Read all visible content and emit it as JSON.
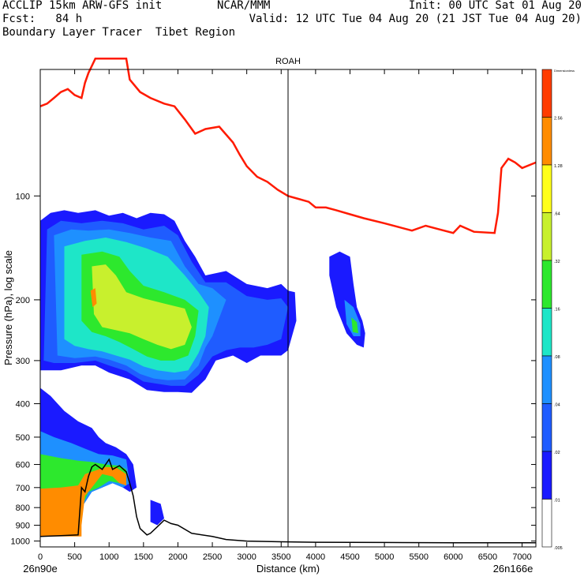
{
  "header": {
    "line1_left": "ACCLIP 15km ARW-GFS init",
    "line1_mid": "NCAR/MMM",
    "line1_right": "Init: 00 UTC Sat 01 Aug 20",
    "line2_left": "Fcst:   84 h",
    "line2_right": "Valid: 12 UTC Tue 04 Aug 20 (21 JST Tue 04 Aug 20)",
    "line3_left": "Boundary Layer Tracer  Tibet Region"
  },
  "colors": {
    "tropopause": "#ff1a00",
    "terrain": "#000000",
    "levels": [
      "#ffffff",
      "#1a1aff",
      "#1f5cff",
      "#1e90ff",
      "#1ee6c8",
      "#2de82d",
      "#c8f02d",
      "#ffff1a",
      "#ff8c00",
      "#ff3c00"
    ]
  },
  "chart_data": {
    "type": "contour-cross-section",
    "title": "ROAH",
    "xlabel": "Distance (km)",
    "ylabel": "Pressure (hPa), log scale",
    "x_ticks": [
      0,
      500,
      1000,
      1500,
      2000,
      2500,
      3000,
      3500,
      4000,
      4500,
      5000,
      5500,
      6000,
      6500,
      7000
    ],
    "xlim": [
      0,
      7200
    ],
    "y_ticks": [
      100,
      200,
      300,
      400,
      500,
      600,
      700,
      800,
      900,
      1000
    ],
    "ylog": true,
    "ylim": [
      1040,
      43
    ],
    "x_start_label": "26n90e",
    "x_end_label": "26n166e",
    "vertical_marker_x": 3600,
    "colorbar_labels": [
      "Dimensionless",
      "2.56",
      "1.28",
      ".64",
      ".32",
      ".16",
      ".08",
      ".04",
      ".02",
      ".01",
      ".005"
    ],
    "tropopause": {
      "x": [
        0,
        100,
        200,
        300,
        400,
        500,
        600,
        650,
        700,
        750,
        800,
        1250,
        1300,
        1450,
        1600,
        1800,
        1950,
        2100,
        2250,
        2400,
        2600,
        2800,
        2900,
        3000,
        3150,
        3300,
        3450,
        3600,
        3750,
        3900,
        4000,
        4150,
        4300,
        4500,
        4700,
        5000,
        5200,
        5400,
        5600,
        5800,
        6000,
        6100,
        6300,
        6600,
        6650,
        6700,
        6800,
        6900,
        7000,
        7200
      ],
      "p": [
        55,
        54,
        52,
        50,
        49,
        51,
        52,
        47,
        44,
        42,
        40,
        40,
        46,
        50,
        52,
        54,
        55,
        60,
        66,
        64,
        63,
        70,
        76,
        82,
        88,
        91,
        96,
        100,
        102,
        104,
        108,
        108,
        110,
        113,
        116,
        120,
        123,
        126,
        122,
        125,
        128,
        122,
        127,
        128,
        112,
        83,
        78,
        80,
        83,
        80
      ]
    },
    "terrain": {
      "x": [
        0,
        300,
        550,
        600,
        650,
        700,
        750,
        800,
        900,
        1000,
        1050,
        1150,
        1250,
        1300,
        1350,
        1400,
        1450,
        1550,
        1600,
        1700,
        1800,
        1900,
        2000,
        2200,
        2500,
        2700,
        3000,
        3500,
        4000,
        5000,
        6000,
        7200
      ],
      "p": [
        970,
        965,
        960,
        700,
        720,
        650,
        610,
        600,
        620,
        580,
        620,
        605,
        630,
        680,
        740,
        850,
        920,
        960,
        950,
        910,
        870,
        890,
        900,
        950,
        970,
        990,
        1000,
        1005,
        1008,
        1010,
        1012,
        1012
      ]
    },
    "plumes_description": "colored contour regions of tracer concentration",
    "plumes": [
      {
        "level": 1,
        "pts": [
          [
            0,
            118
          ],
          [
            150,
            112
          ],
          [
            350,
            110
          ],
          [
            550,
            112
          ],
          [
            800,
            110
          ],
          [
            1000,
            114
          ],
          [
            1200,
            112
          ],
          [
            1400,
            116
          ],
          [
            1600,
            112
          ],
          [
            1800,
            113
          ],
          [
            1950,
            118
          ],
          [
            2100,
            135
          ],
          [
            2250,
            150
          ],
          [
            2400,
            170
          ],
          [
            2700,
            165
          ],
          [
            3000,
            180
          ],
          [
            3300,
            185
          ],
          [
            3500,
            180
          ],
          [
            3600,
            188
          ],
          [
            3700,
            190
          ],
          [
            3720,
            230
          ],
          [
            3600,
            280
          ],
          [
            3500,
            290
          ],
          [
            3200,
            290
          ],
          [
            3000,
            305
          ],
          [
            2800,
            290
          ],
          [
            2550,
            300
          ],
          [
            2400,
            340
          ],
          [
            2200,
            372
          ],
          [
            2000,
            370
          ],
          [
            1800,
            370
          ],
          [
            1550,
            365
          ],
          [
            1300,
            340
          ],
          [
            1000,
            325
          ],
          [
            800,
            310
          ],
          [
            600,
            310
          ],
          [
            300,
            320
          ],
          [
            0,
            320
          ]
        ]
      },
      {
        "level": 2,
        "pts": [
          [
            100,
            125
          ],
          [
            300,
            118
          ],
          [
            600,
            120
          ],
          [
            900,
            118
          ],
          [
            1200,
            120
          ],
          [
            1500,
            125
          ],
          [
            1800,
            122
          ],
          [
            2000,
            130
          ],
          [
            2200,
            155
          ],
          [
            2400,
            178
          ],
          [
            2700,
            178
          ],
          [
            3000,
            195
          ],
          [
            3300,
            200
          ],
          [
            3500,
            198
          ],
          [
            3600,
            210
          ],
          [
            3500,
            260
          ],
          [
            3300,
            270
          ],
          [
            3100,
            275
          ],
          [
            2900,
            275
          ],
          [
            2700,
            280
          ],
          [
            2500,
            292
          ],
          [
            2300,
            330
          ],
          [
            2100,
            355
          ],
          [
            1900,
            355
          ],
          [
            1700,
            350
          ],
          [
            1500,
            345
          ],
          [
            1250,
            322
          ],
          [
            1000,
            310
          ],
          [
            800,
            300
          ],
          [
            500,
            305
          ],
          [
            200,
            305
          ],
          [
            50,
            300
          ]
        ]
      },
      {
        "level": 3,
        "pts": [
          [
            200,
            130
          ],
          [
            450,
            125
          ],
          [
            700,
            126
          ],
          [
            1000,
            125
          ],
          [
            1300,
            128
          ],
          [
            1600,
            132
          ],
          [
            1900,
            135
          ],
          [
            2100,
            160
          ],
          [
            2300,
            180
          ],
          [
            2500,
            185
          ],
          [
            2700,
            200
          ],
          [
            2500,
            255
          ],
          [
            2400,
            275
          ],
          [
            2300,
            310
          ],
          [
            2100,
            340
          ],
          [
            1850,
            342
          ],
          [
            1650,
            338
          ],
          [
            1450,
            328
          ],
          [
            1250,
            310
          ],
          [
            1000,
            298
          ],
          [
            800,
            292
          ],
          [
            500,
            295
          ],
          [
            250,
            290
          ]
        ]
      },
      {
        "level": 4,
        "pts": [
          [
            350,
            140
          ],
          [
            650,
            135
          ],
          [
            950,
            132
          ],
          [
            1250,
            136
          ],
          [
            1550,
            142
          ],
          [
            1850,
            150
          ],
          [
            2100,
            170
          ],
          [
            2300,
            190
          ],
          [
            2450,
            210
          ],
          [
            2400,
            255
          ],
          [
            2300,
            285
          ],
          [
            2150,
            320
          ],
          [
            1950,
            325
          ],
          [
            1700,
            320
          ],
          [
            1500,
            312
          ],
          [
            1300,
            298
          ],
          [
            1100,
            290
          ],
          [
            900,
            282
          ],
          [
            700,
            278
          ],
          [
            500,
            272
          ],
          [
            350,
            260
          ]
        ]
      },
      {
        "level": 5,
        "pts": [
          [
            600,
            148
          ],
          [
            900,
            145
          ],
          [
            1150,
            150
          ],
          [
            1300,
            165
          ],
          [
            1500,
            182
          ],
          [
            1800,
            190
          ],
          [
            2100,
            200
          ],
          [
            2300,
            215
          ],
          [
            2250,
            255
          ],
          [
            2150,
            290
          ],
          [
            1950,
            300
          ],
          [
            1750,
            300
          ],
          [
            1550,
            292
          ],
          [
            1350,
            278
          ],
          [
            1150,
            265
          ],
          [
            950,
            255
          ],
          [
            750,
            248
          ],
          [
            600,
            230
          ]
        ]
      },
      {
        "level": 6,
        "pts": [
          [
            750,
            160
          ],
          [
            950,
            158
          ],
          [
            1100,
            170
          ],
          [
            1250,
            190
          ],
          [
            1500,
            198
          ],
          [
            1800,
            205
          ],
          [
            2100,
            212
          ],
          [
            2200,
            240
          ],
          [
            2100,
            270
          ],
          [
            1900,
            278
          ],
          [
            1700,
            270
          ],
          [
            1500,
            260
          ],
          [
            1300,
            250
          ],
          [
            1100,
            245
          ],
          [
            900,
            240
          ],
          [
            780,
            220
          ]
        ]
      },
      {
        "level": 8,
        "pts": [
          [
            730,
            188
          ],
          [
            800,
            185
          ],
          [
            820,
            205
          ],
          [
            760,
            210
          ]
        ]
      },
      {
        "level": 1,
        "pts": [
          [
            4200,
            150
          ],
          [
            4350,
            145
          ],
          [
            4500,
            150
          ],
          [
            4550,
            180
          ],
          [
            4600,
            210
          ],
          [
            4680,
            230
          ],
          [
            4720,
            250
          ],
          [
            4700,
            275
          ],
          [
            4600,
            270
          ],
          [
            4450,
            250
          ],
          [
            4300,
            210
          ],
          [
            4200,
            170
          ]
        ]
      },
      {
        "level": 3,
        "pts": [
          [
            4420,
            200
          ],
          [
            4550,
            210
          ],
          [
            4650,
            235
          ],
          [
            4650,
            255
          ],
          [
            4550,
            255
          ],
          [
            4450,
            235
          ]
        ]
      },
      {
        "level": 5,
        "pts": [
          [
            4520,
            225
          ],
          [
            4600,
            232
          ],
          [
            4620,
            250
          ],
          [
            4540,
            248
          ]
        ]
      },
      {
        "level": 1,
        "pts": [
          [
            0,
            360
          ],
          [
            150,
            380
          ],
          [
            350,
            420
          ],
          [
            550,
            450
          ],
          [
            750,
            470
          ],
          [
            850,
            500
          ],
          [
            950,
            520
          ],
          [
            1100,
            535
          ],
          [
            1250,
            560
          ],
          [
            1350,
            600
          ],
          [
            1400,
            700
          ],
          [
            1300,
            720
          ],
          [
            1200,
            700
          ],
          [
            1050,
            680
          ],
          [
            900,
            700
          ],
          [
            750,
            720
          ],
          [
            600,
            800
          ],
          [
            300,
            800
          ],
          [
            0,
            780
          ]
        ]
      },
      {
        "level": 3,
        "pts": [
          [
            0,
            480
          ],
          [
            200,
            500
          ],
          [
            450,
            520
          ],
          [
            650,
            540
          ],
          [
            850,
            560
          ],
          [
            1050,
            565
          ],
          [
            1250,
            580
          ],
          [
            1300,
            680
          ],
          [
            1200,
            700
          ],
          [
            1050,
            680
          ],
          [
            900,
            700
          ],
          [
            750,
            720
          ],
          [
            600,
            800
          ],
          [
            300,
            800
          ],
          [
            0,
            790
          ]
        ]
      },
      {
        "level": 5,
        "pts": [
          [
            0,
            560
          ],
          [
            300,
            575
          ],
          [
            550,
            585
          ],
          [
            750,
            590
          ],
          [
            950,
            600
          ],
          [
            1150,
            605
          ],
          [
            1250,
            620
          ],
          [
            1250,
            680
          ],
          [
            1150,
            680
          ],
          [
            1000,
            670
          ],
          [
            850,
            700
          ],
          [
            700,
            720
          ],
          [
            600,
            800
          ],
          [
            300,
            800
          ],
          [
            0,
            790
          ]
        ]
      },
      {
        "level": 8,
        "pts": [
          [
            0,
            705
          ],
          [
            300,
            700
          ],
          [
            550,
            690
          ],
          [
            650,
            640
          ],
          [
            800,
            625
          ],
          [
            950,
            610
          ],
          [
            1100,
            612
          ],
          [
            1250,
            640
          ],
          [
            1250,
            690
          ],
          [
            1150,
            680
          ],
          [
            1050,
            650
          ],
          [
            900,
            640
          ],
          [
            750,
            700
          ],
          [
            650,
            740
          ],
          [
            600,
            900
          ],
          [
            600,
            970
          ],
          [
            0,
            970
          ]
        ]
      },
      {
        "level": 1,
        "pts": [
          [
            1600,
            760
          ],
          [
            1750,
            780
          ],
          [
            1800,
            860
          ],
          [
            1700,
            900
          ],
          [
            1600,
            880
          ]
        ]
      }
    ]
  }
}
